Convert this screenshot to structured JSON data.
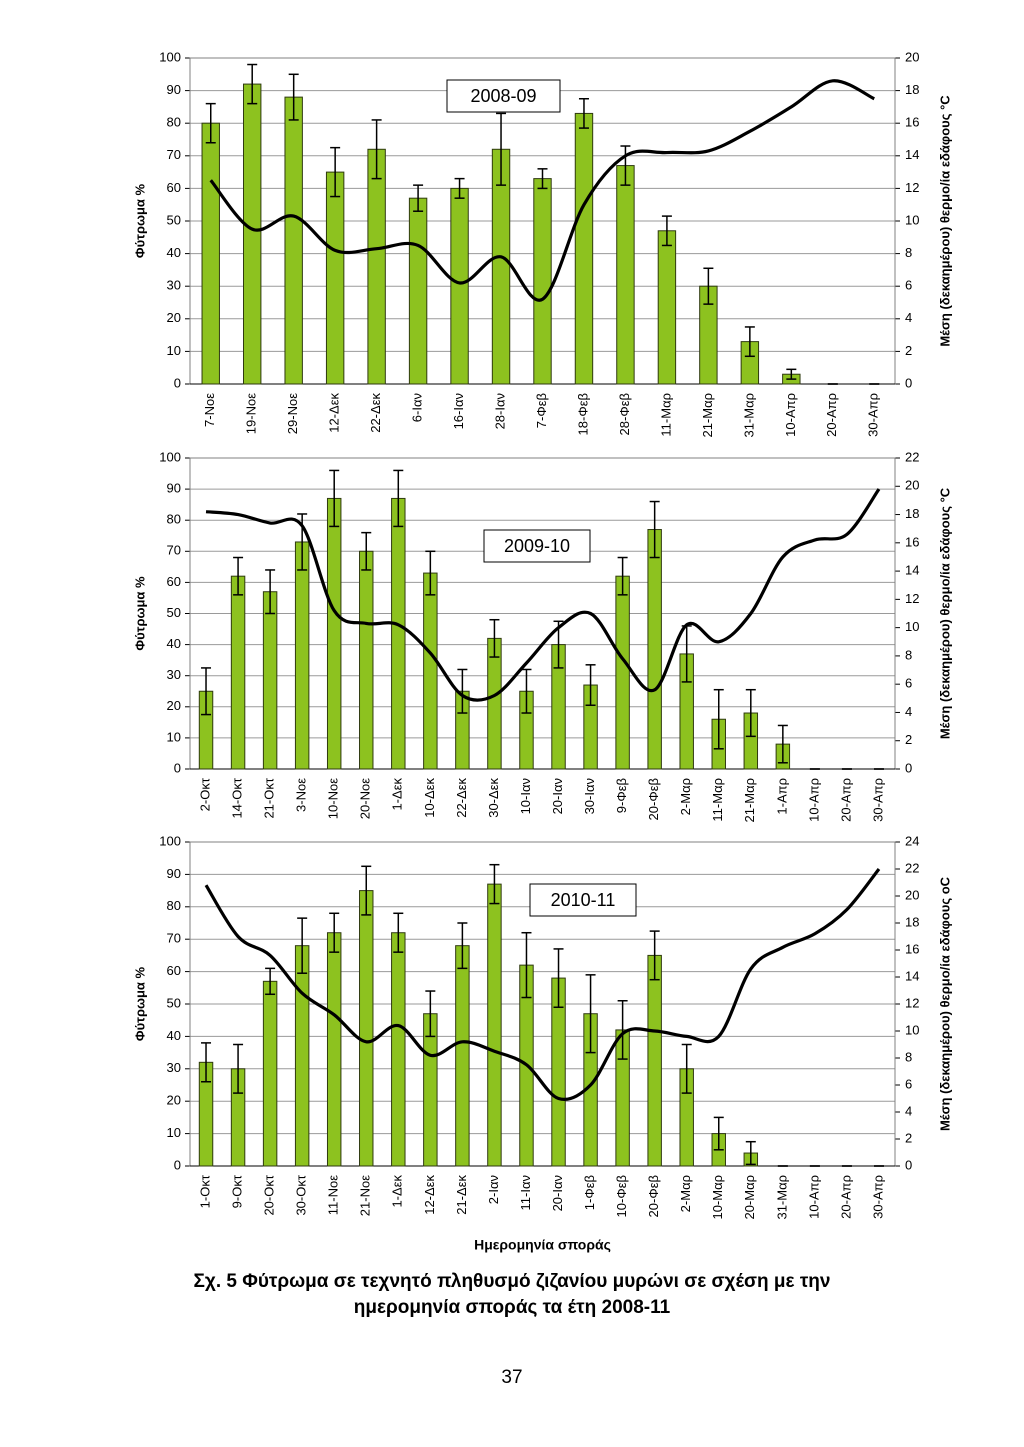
{
  "chart_data": [
    {
      "type": "bar",
      "title": "2008-09",
      "ylabel": "Φύτρωμα %",
      "y2label": "Μέση (δεκαημέρου) θερμο/ία εδάφους °C",
      "categories": [
        "7-Νοε",
        "19-Νοε",
        "29-Νοε",
        "12-Δεκ",
        "22-Δεκ",
        "6-Ιαν",
        "16-Ιαν",
        "28-Ιαν",
        "7-Φεβ",
        "18-Φεβ",
        "28-Φεβ",
        "11-Μαρ",
        "21-Μαρ",
        "31-Μαρ",
        "10-Απρ",
        "20-Απρ",
        "30-Απρ"
      ],
      "series": [
        {
          "type": "bar",
          "color": "#8dc21f",
          "values": [
            80,
            92,
            88,
            65,
            72,
            57,
            60,
            72,
            63,
            83,
            67,
            47,
            30,
            13,
            3,
            0,
            0
          ],
          "errors": [
            6,
            6,
            7,
            7.5,
            9,
            4,
            3,
            11,
            3,
            4.5,
            6,
            4.5,
            5.5,
            4.5,
            1.5,
            0,
            0
          ]
        },
        {
          "type": "line",
          "axis": "y2",
          "color": "#000000",
          "values": [
            12.5,
            9.5,
            10.3,
            8.2,
            8.3,
            8.5,
            6.2,
            7.8,
            5.2,
            11,
            14,
            14.2,
            14.3,
            15.5,
            17,
            18.6,
            17.5
          ]
        }
      ],
      "ylim": [
        0,
        100
      ],
      "yticks": [
        0,
        10,
        20,
        30,
        40,
        50,
        60,
        70,
        80,
        90,
        100
      ],
      "y2lim": [
        0,
        20
      ],
      "y2ticks": [
        0,
        2,
        4,
        6,
        8,
        10,
        12,
        14,
        16,
        18,
        20
      ],
      "grid": true
    },
    {
      "type": "bar",
      "title": "2009-10",
      "ylabel": "Φύτρωμα %",
      "y2label": "Μέση (δεκαημέρου) θερμο/ία εδάφους °C",
      "categories": [
        "2-Οκτ",
        "14-Οκτ",
        "21-Οκτ",
        "3-Νοε",
        "10-Νοε",
        "20-Νοε",
        "1-Δεκ",
        "10-Δεκ",
        "22-Δεκ",
        "30-Δεκ",
        "10-Ιαν",
        "20-Ιαν",
        "30-Ιαν",
        "9-Φεβ",
        "20-Φεβ",
        "2-Μαρ",
        "11-Μαρ",
        "21-Μαρ",
        "1-Απρ",
        "10-Απρ",
        "20-Απρ",
        "30-Απρ"
      ],
      "series": [
        {
          "type": "bar",
          "color": "#8dc21f",
          "values": [
            25,
            62,
            57,
            73,
            87,
            70,
            87,
            63,
            25,
            42,
            25,
            40,
            27,
            62,
            77,
            37,
            16,
            18,
            8,
            0,
            0,
            0
          ],
          "errors": [
            7.5,
            6,
            7,
            9,
            9,
            6,
            9,
            7,
            7,
            6,
            7,
            7.5,
            6.5,
            6,
            9,
            9,
            9.5,
            7.5,
            6,
            0,
            0,
            0
          ]
        },
        {
          "type": "line",
          "axis": "y2",
          "color": "#000000",
          "values": [
            18.2,
            18,
            17.4,
            17.2,
            11.2,
            10.3,
            10.2,
            8.2,
            5.2,
            5.2,
            7.5,
            10,
            11,
            7.8,
            5.6,
            10.2,
            9,
            11,
            15,
            16.2,
            16.6,
            19.8
          ]
        }
      ],
      "ylim": [
        0,
        100
      ],
      "yticks": [
        0,
        10,
        20,
        30,
        40,
        50,
        60,
        70,
        80,
        90,
        100
      ],
      "y2lim": [
        0,
        22
      ],
      "y2ticks": [
        0,
        2,
        4,
        6,
        8,
        10,
        12,
        14,
        16,
        18,
        20,
        22
      ],
      "grid": true
    },
    {
      "type": "bar",
      "title": "2010-11",
      "ylabel": "Φύτρωμα %",
      "y2label": "Μέση (δεκαημέρου) θερμο/ία εδάφους οC",
      "xlabel": "Ημερομηνία σποράς",
      "categories": [
        "1-Οκτ",
        "9-Οκτ",
        "20-Οκτ",
        "30-Οκτ",
        "11-Νοε",
        "21-Νοε",
        "1-Δεκ",
        "12-Δεκ",
        "21-Δεκ",
        "2-Ιαν",
        "11-Ιαν",
        "20-Ιαν",
        "1-Φεβ",
        "10-Φεβ",
        "20-Φεβ",
        "2-Μαρ",
        "10-Μαρ",
        "20-Μαρ",
        "31-Μαρ",
        "10-Απρ",
        "20-Απρ",
        "30-Απρ"
      ],
      "series": [
        {
          "type": "bar",
          "color": "#8dc21f",
          "values": [
            32,
            30,
            57,
            68,
            72,
            85,
            72,
            47,
            68,
            87,
            62,
            58,
            47,
            42,
            65,
            30,
            10,
            4,
            0,
            0,
            0,
            0
          ],
          "errors": [
            6,
            7.5,
            4,
            8.5,
            6,
            7.5,
            6,
            7,
            7,
            6,
            10,
            9,
            12,
            9,
            7.5,
            7.5,
            5,
            3.5,
            0,
            0,
            0,
            0
          ]
        },
        {
          "type": "line",
          "axis": "y2",
          "color": "#000000",
          "values": [
            20.8,
            17,
            15.6,
            12.8,
            11.2,
            9.2,
            10.4,
            8.2,
            9.2,
            8.5,
            7.5,
            5,
            6,
            9.8,
            10,
            9.6,
            9.6,
            14.6,
            16.2,
            17.2,
            19,
            22
          ]
        }
      ],
      "ylim": [
        0,
        100
      ],
      "yticks": [
        0,
        10,
        20,
        30,
        40,
        50,
        60,
        70,
        80,
        90,
        100
      ],
      "y2lim": [
        0,
        24
      ],
      "y2ticks": [
        0,
        2,
        4,
        6,
        8,
        10,
        12,
        14,
        16,
        18,
        20,
        22,
        24
      ],
      "grid": true
    }
  ],
  "caption": [
    "Σχ. 5 Φύτρωμα σε τεχνητό πληθυσμό ζιζανίου μυρώνι σε σχέση με την",
    "ημερομηνία σποράς τα έτη 2008-11"
  ],
  "page_number": 37
}
